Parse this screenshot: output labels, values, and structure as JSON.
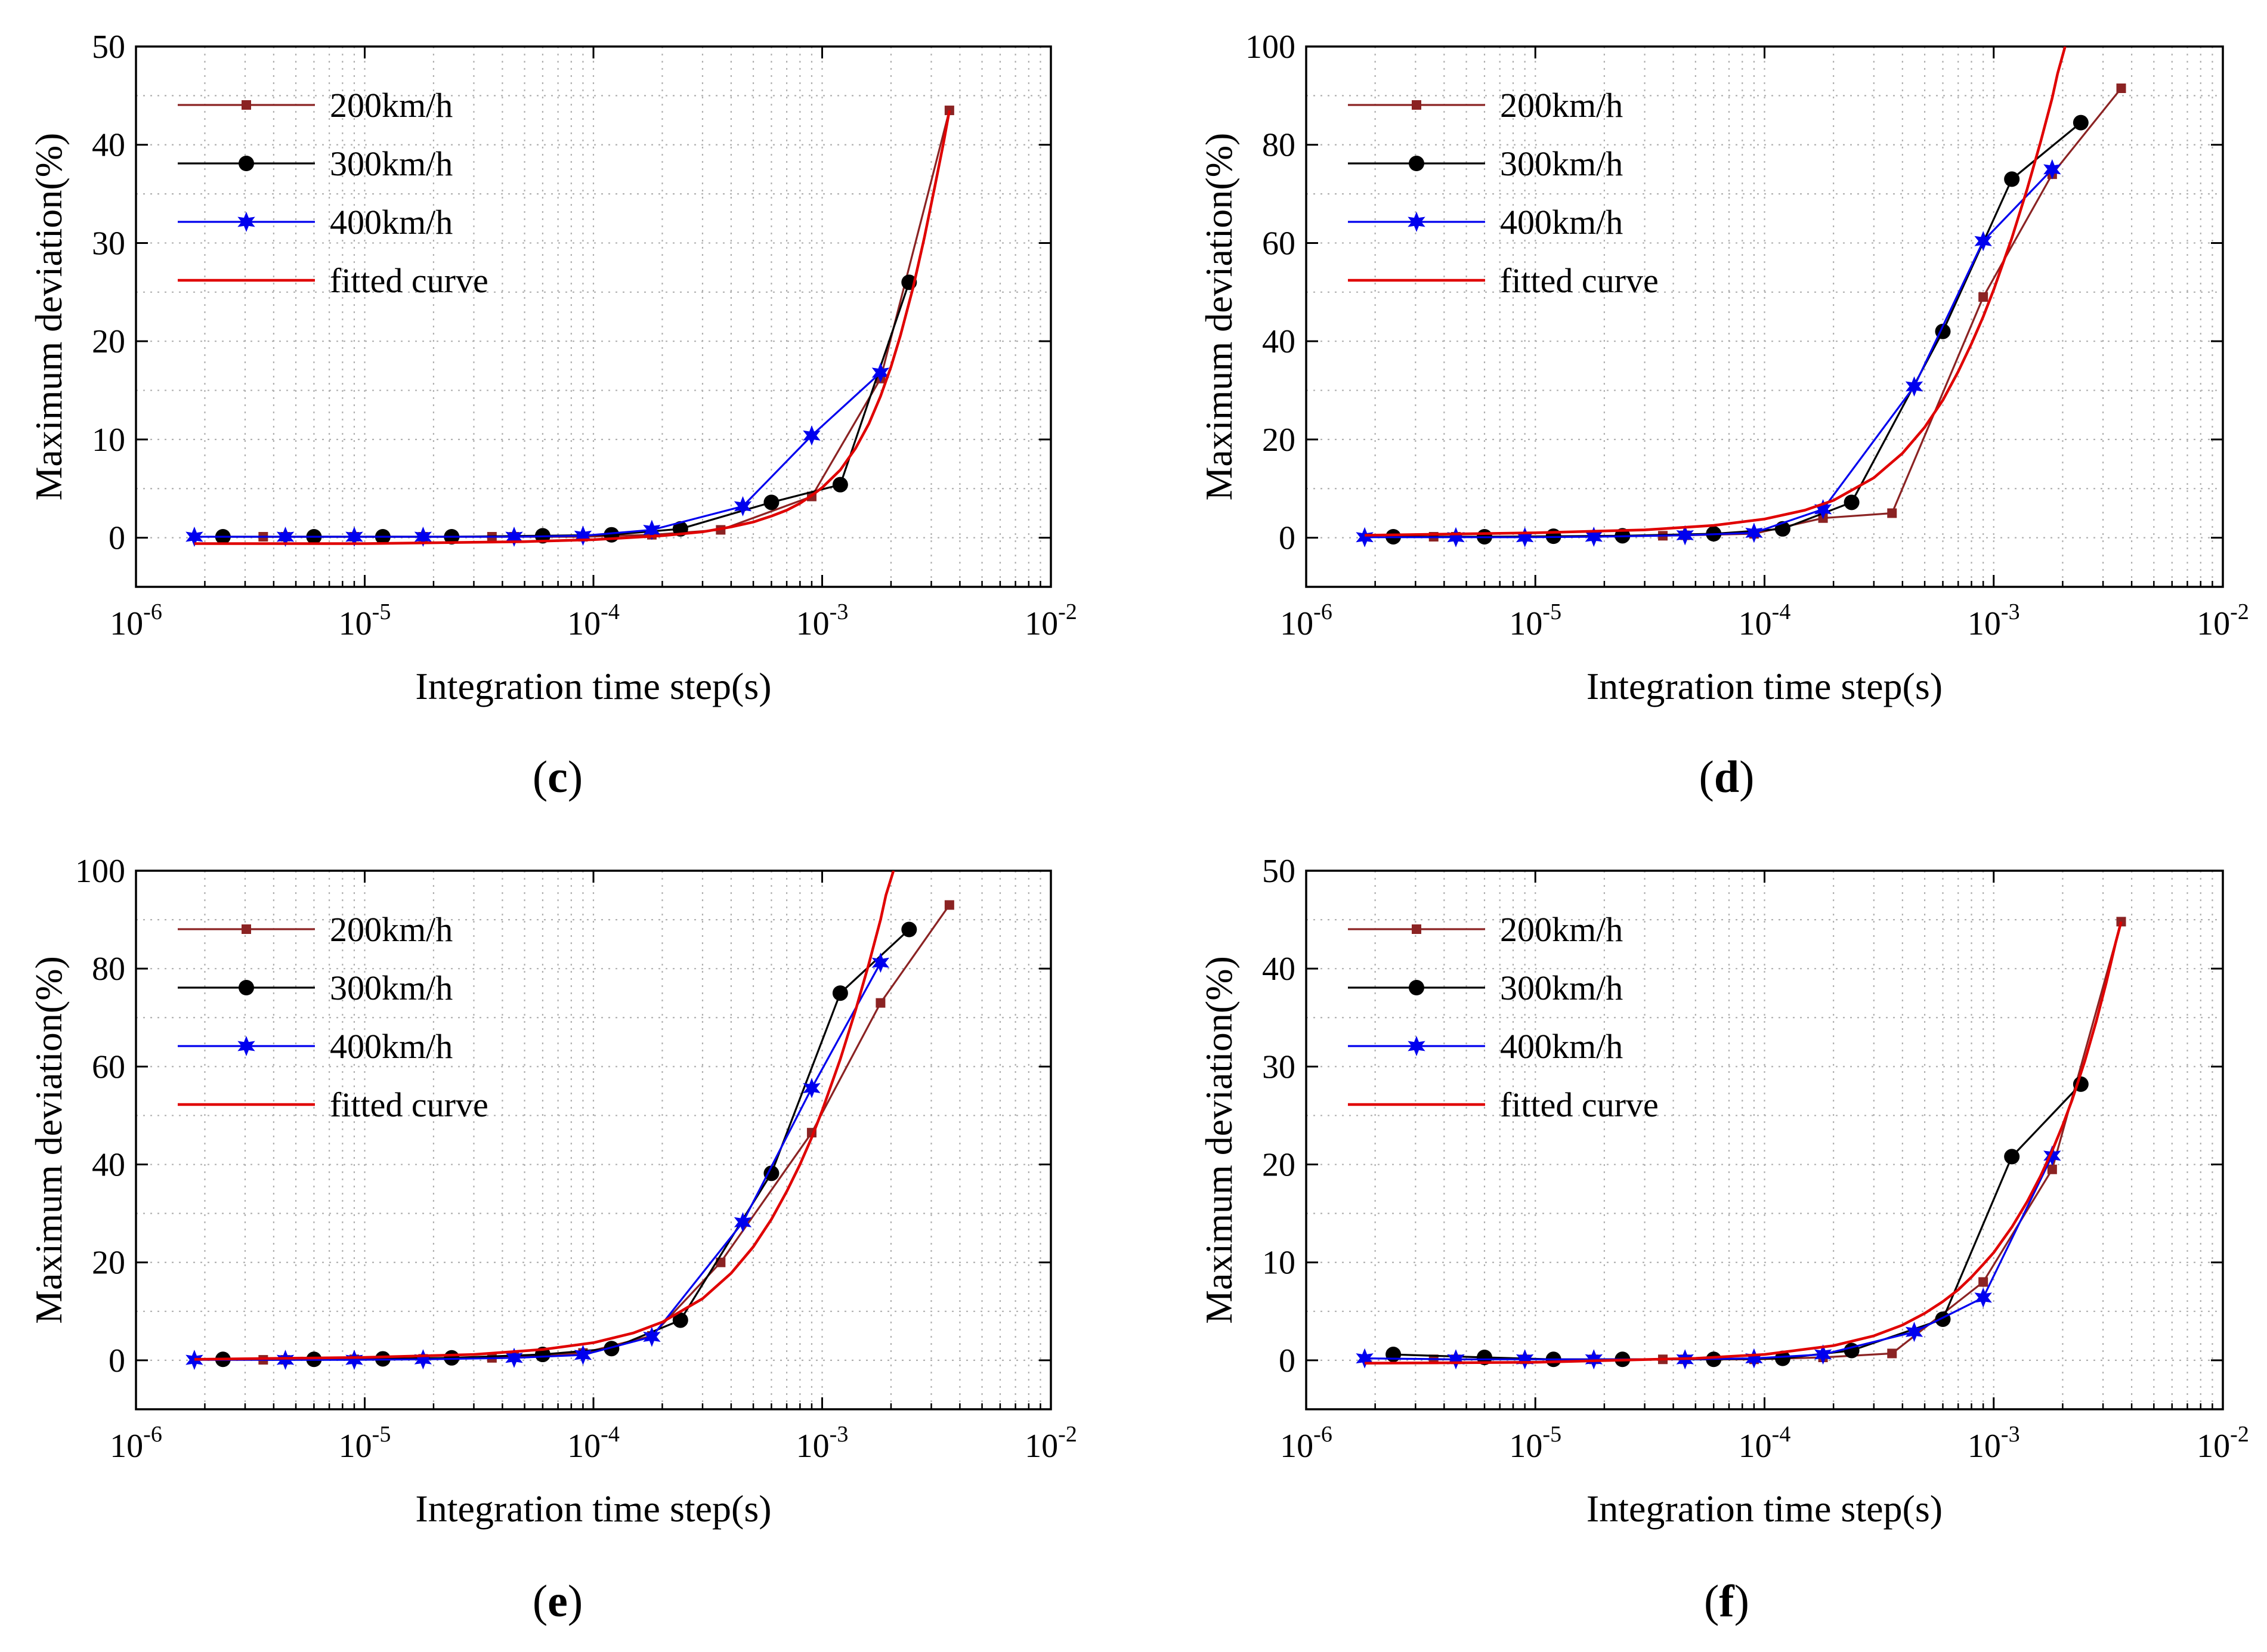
{
  "chart_data": [
    {
      "panel": "(c)",
      "type": "line",
      "xscale": "log",
      "xlim": [
        1e-06,
        0.01
      ],
      "ylim": [
        -5,
        50
      ],
      "yticks": [
        0,
        10,
        20,
        30,
        40,
        50
      ],
      "xticks": [
        {
          "base": "10",
          "exp": "-6",
          "v": 1e-06
        },
        {
          "base": "10",
          "exp": "-5",
          "v": 1e-05
        },
        {
          "base": "10",
          "exp": "-4",
          "v": 0.0001
        },
        {
          "base": "10",
          "exp": "-3",
          "v": 0.001
        },
        {
          "base": "10",
          "exp": "-2",
          "v": 0.01
        }
      ],
      "xlabel": "Integration time step(s)",
      "ylabel": "Maximum deviation(%)",
      "grid": true,
      "legend_position": "top-left",
      "series": [
        {
          "name": "200km/h",
          "color": "#8B2323",
          "marker": "square",
          "x": [
            3.6e-06,
            4.5e-06,
            9e-06,
            1.8e-05,
            3.6e-05,
            4.5e-05,
            9e-05,
            0.00018,
            0.00036,
            0.0009,
            0.0018,
            0.0036
          ],
          "y": [
            0.1,
            0.1,
            0.1,
            0.1,
            0.1,
            0.1,
            0.1,
            0.3,
            0.8,
            4.2,
            16.2,
            43.5
          ]
        },
        {
          "name": "300km/h",
          "color": "#000000",
          "marker": "circle",
          "x": [
            2.4e-06,
            6e-06,
            1.2e-05,
            2.4e-05,
            6e-05,
            0.00012,
            0.00024,
            0.0006,
            0.0012,
            0.0024
          ],
          "y": [
            0.1,
            0.1,
            0.1,
            0.1,
            0.2,
            0.3,
            0.9,
            3.6,
            5.4,
            26.0
          ]
        },
        {
          "name": "400km/h",
          "color": "#0000EE",
          "marker": "star",
          "x": [
            1.8e-06,
            4.5e-06,
            9e-06,
            1.8e-05,
            4.5e-05,
            9e-05,
            0.00018,
            0.00045,
            0.0009,
            0.0018
          ],
          "y": [
            0.1,
            0.1,
            0.1,
            0.1,
            0.1,
            0.2,
            0.8,
            3.2,
            10.4,
            16.8
          ]
        },
        {
          "name": "fitted curve",
          "color": "#E00000",
          "marker": "none",
          "x": [
            1.8e-06,
            1e-05,
            5e-05,
            0.0001,
            0.0002,
            0.0003,
            0.0004,
            0.0005,
            0.0006,
            0.0007,
            0.0008,
            0.0009,
            0.001,
            0.0012,
            0.0014,
            0.0016,
            0.0018,
            0.002,
            0.0022,
            0.0025,
            0.0028,
            0.0031,
            0.0034,
            0.0036
          ],
          "y": [
            -0.6,
            -0.6,
            -0.4,
            -0.2,
            0.2,
            0.6,
            1.1,
            1.6,
            2.2,
            2.8,
            3.5,
            4.3,
            5.1,
            6.9,
            9.1,
            11.6,
            14.4,
            17.4,
            20.6,
            25.5,
            30.6,
            35.6,
            40.3,
            43.5
          ]
        }
      ]
    },
    {
      "panel": "(d)",
      "type": "line",
      "xscale": "log",
      "xlim": [
        1e-06,
        0.01
      ],
      "ylim": [
        -10,
        100
      ],
      "yticks": [
        0,
        20,
        40,
        60,
        80,
        100
      ],
      "xticks": [
        {
          "base": "10",
          "exp": "-6",
          "v": 1e-06
        },
        {
          "base": "10",
          "exp": "-5",
          "v": 1e-05
        },
        {
          "base": "10",
          "exp": "-4",
          "v": 0.0001
        },
        {
          "base": "10",
          "exp": "-3",
          "v": 0.001
        },
        {
          "base": "10",
          "exp": "-2",
          "v": 0.01
        }
      ],
      "xlabel": "Integration time step(s)",
      "ylabel": "Maximum deviation(%)",
      "grid": true,
      "legend_position": "top-left",
      "series": [
        {
          "name": "200km/h",
          "color": "#8B2323",
          "marker": "square",
          "x": [
            3.6e-06,
            4.5e-06,
            9e-06,
            1.8e-05,
            3.6e-05,
            4.5e-05,
            9e-05,
            0.00018,
            0.00036,
            0.0009,
            0.0018,
            0.0036
          ],
          "y": [
            0.2,
            0.2,
            0.2,
            0.3,
            0.4,
            0.5,
            0.8,
            4.0,
            5.0,
            49.0,
            74.0,
            91.5
          ]
        },
        {
          "name": "300km/h",
          "color": "#000000",
          "marker": "circle",
          "x": [
            2.4e-06,
            6e-06,
            1.2e-05,
            2.4e-05,
            6e-05,
            0.00012,
            0.00024,
            0.0006,
            0.0012,
            0.0024
          ],
          "y": [
            0.2,
            0.2,
            0.3,
            0.4,
            0.8,
            1.8,
            7.2,
            42.0,
            73.0,
            84.5
          ]
        },
        {
          "name": "400km/h",
          "color": "#0000EE",
          "marker": "star",
          "x": [
            1.8e-06,
            4.5e-06,
            9e-06,
            1.8e-05,
            4.5e-05,
            9e-05,
            0.00018,
            0.00045,
            0.0009,
            0.0018
          ],
          "y": [
            0.1,
            0.1,
            0.1,
            0.2,
            0.5,
            1.0,
            5.8,
            30.8,
            60.4,
            75.0
          ]
        },
        {
          "name": "fitted curve",
          "color": "#E00000",
          "marker": "none",
          "x": [
            1.8e-06,
            1e-05,
            3e-05,
            6e-05,
            0.0001,
            0.00015,
            0.0002,
            0.0003,
            0.0004,
            0.0005,
            0.0006,
            0.0007,
            0.0008,
            0.0009,
            0.001,
            0.0012,
            0.0014,
            0.0016,
            0.0018,
            0.0019,
            0.00205
          ],
          "y": [
            0.5,
            1.0,
            1.6,
            2.5,
            3.8,
            5.6,
            7.6,
            12.2,
            17.2,
            22.5,
            28.0,
            33.8,
            39.5,
            45.0,
            50.5,
            61.0,
            71.0,
            80.5,
            89.5,
            94.5,
            100
          ]
        }
      ]
    },
    {
      "panel": "(e)",
      "type": "line",
      "xscale": "log",
      "xlim": [
        1e-06,
        0.01
      ],
      "ylim": [
        -10,
        100
      ],
      "yticks": [
        0,
        20,
        40,
        60,
        80,
        100
      ],
      "xticks": [
        {
          "base": "10",
          "exp": "-6",
          "v": 1e-06
        },
        {
          "base": "10",
          "exp": "-5",
          "v": 1e-05
        },
        {
          "base": "10",
          "exp": "-4",
          "v": 0.0001
        },
        {
          "base": "10",
          "exp": "-3",
          "v": 0.001
        },
        {
          "base": "10",
          "exp": "-2",
          "v": 0.01
        }
      ],
      "xlabel": "Integration time step(s)",
      "ylabel": "Maximum deviation(%)",
      "grid": true,
      "legend_position": "top-left",
      "series": [
        {
          "name": "200km/h",
          "color": "#8B2323",
          "marker": "square",
          "x": [
            3.6e-06,
            4.5e-06,
            9e-06,
            1.8e-05,
            3.6e-05,
            4.5e-05,
            9e-05,
            0.00018,
            0.00036,
            0.0009,
            0.0018,
            0.0036
          ],
          "y": [
            0.1,
            0.1,
            0.2,
            0.3,
            0.5,
            0.7,
            1.5,
            5.0,
            20.0,
            46.5,
            73.0,
            93.0
          ]
        },
        {
          "name": "300km/h",
          "color": "#000000",
          "marker": "circle",
          "x": [
            2.4e-06,
            6e-06,
            1.2e-05,
            2.4e-05,
            6e-05,
            0.00012,
            0.00024,
            0.0006,
            0.0012,
            0.0024
          ],
          "y": [
            0.2,
            0.2,
            0.3,
            0.5,
            1.2,
            2.4,
            8.2,
            38.2,
            75.0,
            88.0
          ]
        },
        {
          "name": "400km/h",
          "color": "#0000EE",
          "marker": "star",
          "x": [
            1.8e-06,
            4.5e-06,
            9e-06,
            1.8e-05,
            4.5e-05,
            9e-05,
            0.00018,
            0.00045,
            0.0009,
            0.0018
          ],
          "y": [
            0.1,
            0.1,
            0.1,
            0.2,
            0.5,
            1.1,
            4.8,
            28.2,
            55.6,
            81.2
          ]
        },
        {
          "name": "fitted curve",
          "color": "#E00000",
          "marker": "none",
          "x": [
            1.8e-06,
            1e-05,
            3e-05,
            6e-05,
            0.0001,
            0.00015,
            0.0002,
            0.0003,
            0.0004,
            0.0005,
            0.0006,
            0.0007,
            0.0008,
            0.0009,
            0.001,
            0.0012,
            0.0014,
            0.0016,
            0.0018,
            0.0019,
            0.00205
          ],
          "y": [
            0.2,
            0.6,
            1.2,
            2.2,
            3.6,
            5.6,
            7.8,
            12.6,
            17.8,
            23.2,
            28.8,
            34.5,
            40.0,
            45.5,
            51.0,
            61.5,
            71.5,
            81.0,
            90.0,
            95.0,
            100
          ]
        }
      ]
    },
    {
      "panel": "(f)",
      "type": "line",
      "xscale": "log",
      "xlim": [
        1e-06,
        0.01
      ],
      "ylim": [
        -5,
        50
      ],
      "yticks": [
        0,
        10,
        20,
        30,
        40,
        50
      ],
      "xticks": [
        {
          "base": "10",
          "exp": "-6",
          "v": 1e-06
        },
        {
          "base": "10",
          "exp": "-5",
          "v": 1e-05
        },
        {
          "base": "10",
          "exp": "-4",
          "v": 0.0001
        },
        {
          "base": "10",
          "exp": "-3",
          "v": 0.001
        },
        {
          "base": "10",
          "exp": "-2",
          "v": 0.01
        }
      ],
      "xlabel": "Integration time step(s)",
      "ylabel": "Maximum deviation(%)",
      "grid": true,
      "legend_position": "top-left",
      "series": [
        {
          "name": "200km/h",
          "color": "#8B2323",
          "marker": "square",
          "x": [
            3.6e-06,
            4.5e-06,
            9e-06,
            1.8e-05,
            3.6e-05,
            4.5e-05,
            9e-05,
            0.00018,
            0.00036,
            0.0009,
            0.0018,
            0.0036
          ],
          "y": [
            0.1,
            0.1,
            0.1,
            0.1,
            0.1,
            0.1,
            0.1,
            0.3,
            0.7,
            8.0,
            19.5,
            44.8
          ]
        },
        {
          "name": "300km/h",
          "color": "#000000",
          "marker": "circle",
          "x": [
            2.4e-06,
            6e-06,
            1.2e-05,
            2.4e-05,
            6e-05,
            0.00012,
            0.00024,
            0.0006,
            0.0012,
            0.0024
          ],
          "y": [
            0.6,
            0.3,
            0.1,
            0.1,
            0.1,
            0.2,
            1.0,
            4.2,
            20.8,
            28.2
          ]
        },
        {
          "name": "400km/h",
          "color": "#0000EE",
          "marker": "star",
          "x": [
            1.8e-06,
            4.5e-06,
            9e-06,
            1.8e-05,
            4.5e-05,
            9e-05,
            0.00018,
            0.00045,
            0.0009,
            0.0018
          ],
          "y": [
            0.2,
            0.1,
            0.1,
            0.1,
            0.1,
            0.2,
            0.6,
            2.9,
            6.4,
            20.9
          ]
        },
        {
          "name": "fitted curve",
          "color": "#E00000",
          "marker": "none",
          "x": [
            1.8e-06,
            1e-05,
            5e-05,
            0.0001,
            0.0002,
            0.0003,
            0.0004,
            0.0005,
            0.0006,
            0.0007,
            0.0008,
            0.0009,
            0.001,
            0.0012,
            0.0014,
            0.0016,
            0.0018,
            0.002,
            0.0022,
            0.0025,
            0.0028,
            0.0031,
            0.0034,
            0.0036
          ],
          "y": [
            -0.3,
            -0.2,
            0.2,
            0.6,
            1.5,
            2.5,
            3.6,
            4.8,
            6.0,
            7.2,
            8.5,
            9.8,
            11.0,
            13.6,
            16.2,
            18.8,
            21.4,
            24.0,
            26.6,
            30.6,
            34.6,
            38.6,
            42.6,
            44.8
          ]
        }
      ]
    }
  ]
}
